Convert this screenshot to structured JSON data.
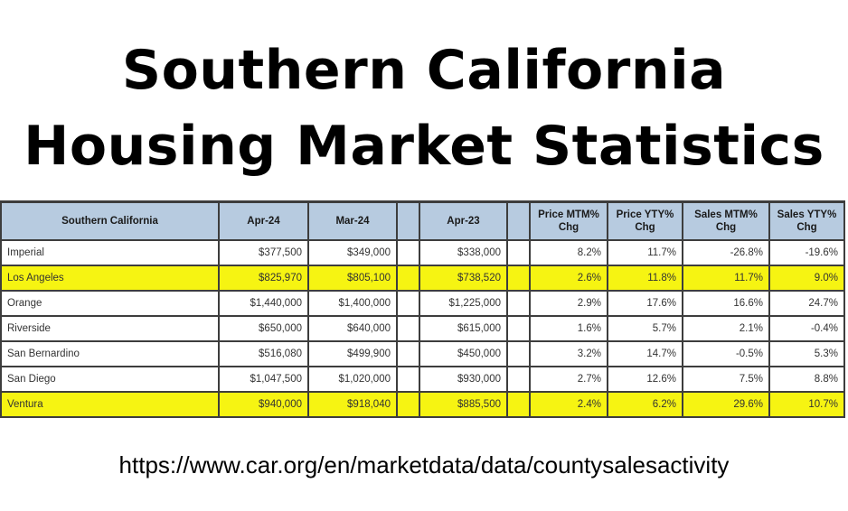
{
  "title": {
    "line1": "Southern California",
    "line2": "Housing Market Statistics"
  },
  "table": {
    "headers": [
      "Southern California",
      "Apr-24",
      "Mar-24",
      "Apr-23",
      "Price MTM% Chg",
      "Price YTY% Chg",
      "Sales MTM% Chg",
      "Sales YTY% Chg"
    ],
    "rows": [
      {
        "name": "Imperial",
        "apr24": "$377,500",
        "mar24": "$349,000",
        "apr23": "$338,000",
        "price_mtm": "8.2%",
        "price_yty": "11.7%",
        "sales_mtm": "-26.8%",
        "sales_yty": "-19.6%",
        "highlight": false
      },
      {
        "name": "Los Angeles",
        "apr24": "$825,970",
        "mar24": "$805,100",
        "apr23": "$738,520",
        "price_mtm": "2.6%",
        "price_yty": "11.8%",
        "sales_mtm": "11.7%",
        "sales_yty": "9.0%",
        "highlight": true
      },
      {
        "name": "Orange",
        "apr24": "$1,440,000",
        "mar24": "$1,400,000",
        "apr23": "$1,225,000",
        "price_mtm": "2.9%",
        "price_yty": "17.6%",
        "sales_mtm": "16.6%",
        "sales_yty": "24.7%",
        "highlight": false
      },
      {
        "name": "Riverside",
        "apr24": "$650,000",
        "mar24": "$640,000",
        "apr23": "$615,000",
        "price_mtm": "1.6%",
        "price_yty": "5.7%",
        "sales_mtm": "2.1%",
        "sales_yty": "-0.4%",
        "highlight": false
      },
      {
        "name": "San Bernardino",
        "apr24": "$516,080",
        "mar24": "$499,900",
        "apr23": "$450,000",
        "price_mtm": "3.2%",
        "price_yty": "14.7%",
        "sales_mtm": "-0.5%",
        "sales_yty": "5.3%",
        "highlight": false
      },
      {
        "name": "San Diego",
        "apr24": "$1,047,500",
        "mar24": "$1,020,000",
        "apr23": "$930,000",
        "price_mtm": "2.7%",
        "price_yty": "12.6%",
        "sales_mtm": "7.5%",
        "sales_yty": "8.8%",
        "highlight": false
      },
      {
        "name": "Ventura",
        "apr24": "$940,000",
        "mar24": "$918,040",
        "apr23": "$885,500",
        "price_mtm": "2.4%",
        "price_yty": "6.2%",
        "sales_mtm": "29.6%",
        "sales_yty": "10.7%",
        "highlight": true
      }
    ]
  },
  "source_url": "https://www.car.org/en/marketdata/data/countysalesactivity",
  "colors": {
    "header_bg": "#b7cbe0",
    "highlight": "#f6f412",
    "border": "#3d3d3d"
  }
}
